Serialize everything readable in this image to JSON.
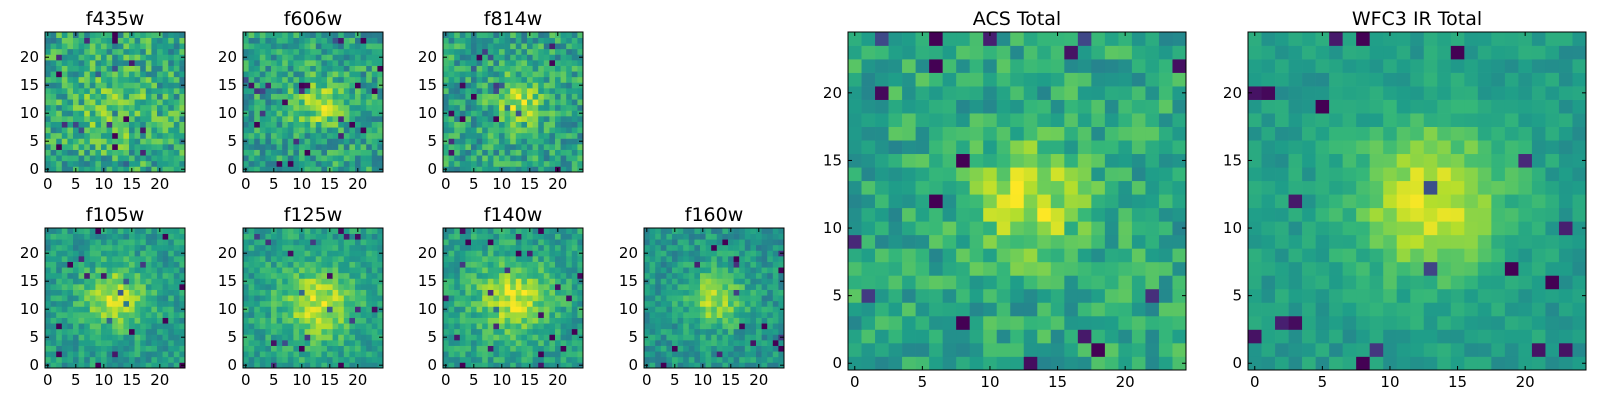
{
  "chart_data": [
    {
      "type": "heatmap",
      "title": "f435w",
      "xticks": [
        0,
        5,
        10,
        15,
        20
      ],
      "yticks": [
        0,
        5,
        10,
        15,
        20
      ],
      "grid_size": 25,
      "xlim": [
        -0.5,
        24.5
      ],
      "ylim": [
        -0.5,
        24.5
      ],
      "colormap": "viridis",
      "noise": 0.42,
      "blob_center": [
        12,
        11
      ],
      "blob_sigma": 4.5,
      "blob_amp": 0.15,
      "base": 0.6,
      "seed": 11
    },
    {
      "type": "heatmap",
      "title": "f606w",
      "xticks": [
        0,
        5,
        10,
        15,
        20
      ],
      "yticks": [
        0,
        5,
        10,
        15,
        20
      ],
      "grid_size": 25,
      "xlim": [
        -0.5,
        24.5
      ],
      "ylim": [
        -0.5,
        24.5
      ],
      "colormap": "viridis",
      "noise": 0.38,
      "blob_center": [
        13,
        12
      ],
      "blob_sigma": 3.0,
      "blob_amp": 0.3,
      "base": 0.58,
      "seed": 23
    },
    {
      "type": "heatmap",
      "title": "f814w",
      "xticks": [
        0,
        5,
        10,
        15,
        20
      ],
      "yticks": [
        0,
        5,
        10,
        15,
        20
      ],
      "grid_size": 25,
      "xlim": [
        -0.5,
        24.5
      ],
      "ylim": [
        -0.5,
        24.5
      ],
      "colormap": "viridis",
      "noise": 0.38,
      "blob_center": [
        13,
        12
      ],
      "blob_sigma": 3.0,
      "blob_amp": 0.3,
      "base": 0.58,
      "seed": 37
    },
    {
      "type": "heatmap",
      "title": "f105w",
      "xticks": [
        0,
        5,
        10,
        15,
        20
      ],
      "yticks": [
        0,
        5,
        10,
        15,
        20
      ],
      "grid_size": 25,
      "xlim": [
        -0.5,
        24.5
      ],
      "ylim": [
        -0.5,
        24.5
      ],
      "colormap": "viridis",
      "noise": 0.26,
      "blob_center": [
        12,
        12
      ],
      "blob_sigma": 4.0,
      "blob_amp": 0.35,
      "base": 0.55,
      "seed": 41
    },
    {
      "type": "heatmap",
      "title": "f125w",
      "xticks": [
        0,
        5,
        10,
        15,
        20
      ],
      "yticks": [
        0,
        5,
        10,
        15,
        20
      ],
      "grid_size": 25,
      "xlim": [
        -0.5,
        24.5
      ],
      "ylim": [
        -0.5,
        24.5
      ],
      "colormap": "viridis",
      "noise": 0.26,
      "blob_center": [
        13,
        11
      ],
      "blob_sigma": 4.5,
      "blob_amp": 0.35,
      "base": 0.57,
      "seed": 53
    },
    {
      "type": "heatmap",
      "title": "f140w",
      "xticks": [
        0,
        5,
        10,
        15,
        20
      ],
      "yticks": [
        0,
        5,
        10,
        15,
        20
      ],
      "grid_size": 25,
      "xlim": [
        -0.5,
        24.5
      ],
      "ylim": [
        -0.5,
        24.5
      ],
      "colormap": "viridis",
      "noise": 0.26,
      "blob_center": [
        12,
        12
      ],
      "blob_sigma": 4.5,
      "blob_amp": 0.35,
      "base": 0.57,
      "seed": 67
    },
    {
      "type": "heatmap",
      "title": "f160w",
      "xticks": [
        0,
        5,
        10,
        15,
        20
      ],
      "yticks": [
        0,
        5,
        10,
        15,
        20
      ],
      "grid_size": 25,
      "xlim": [
        -0.5,
        24.5
      ],
      "ylim": [
        -0.5,
        24.5
      ],
      "colormap": "viridis",
      "noise": 0.26,
      "blob_center": [
        12,
        12
      ],
      "blob_sigma": 3.5,
      "blob_amp": 0.35,
      "base": 0.53,
      "seed": 79
    },
    {
      "type": "heatmap",
      "title": "ACS Total",
      "xticks": [
        0,
        5,
        10,
        15,
        20
      ],
      "yticks": [
        0,
        5,
        10,
        15,
        20
      ],
      "grid_size": 25,
      "xlim": [
        -0.5,
        24.5
      ],
      "ylim": [
        -0.5,
        24.5
      ],
      "colormap": "viridis",
      "noise": 0.3,
      "blob_center": [
        13,
        12
      ],
      "blob_sigma": 2.8,
      "blob_amp": 0.35,
      "base": 0.6,
      "seed": 97
    },
    {
      "type": "heatmap",
      "title": "WFC3 IR Total",
      "xticks": [
        0,
        5,
        10,
        15,
        20
      ],
      "yticks": [
        0,
        5,
        10,
        15,
        20
      ],
      "grid_size": 25,
      "xlim": [
        -0.5,
        24.5
      ],
      "ylim": [
        -0.5,
        24.5
      ],
      "colormap": "viridis",
      "noise": 0.16,
      "blob_center": [
        13,
        12
      ],
      "blob_sigma": 4.0,
      "blob_amp": 0.4,
      "base": 0.55,
      "seed": 113
    }
  ]
}
